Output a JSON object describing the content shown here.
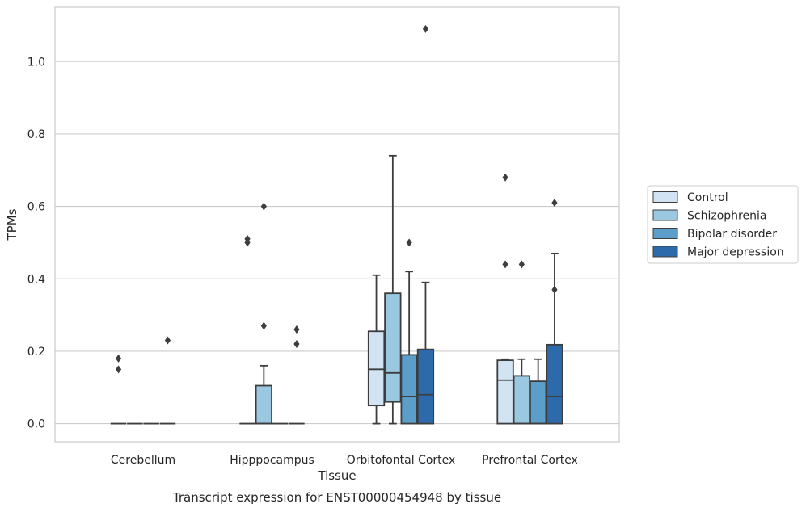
{
  "chart_data": {
    "type": "box",
    "xlabel": "Tissue",
    "ylabel": "TPMs",
    "caption": "Transcript expression for ENST00000454948 by tissue",
    "ylim": [
      -0.05,
      1.15
    ],
    "yticks": [
      "0.0",
      "0.2",
      "0.4",
      "0.6",
      "0.8",
      "1.0"
    ],
    "grid": true,
    "legend_position": "right",
    "categories": [
      "Cerebellum",
      "Hipppocampus",
      "Orbitofontal Cortex",
      "Prefrontal Cortex"
    ],
    "series": [
      {
        "name": "Control",
        "color": "#d2e3f3",
        "boxes": [
          {
            "q1": 0,
            "median": 0,
            "q3": 0,
            "whisker_low": 0,
            "whisker_high": 0,
            "outliers": [
              0.15,
              0.18
            ]
          },
          {
            "q1": 0,
            "median": 0,
            "q3": 0,
            "whisker_low": 0,
            "whisker_high": 0,
            "outliers": [
              0.5,
              0.51
            ]
          },
          {
            "q1": 0.05,
            "median": 0.15,
            "q3": 0.255,
            "whisker_low": 0,
            "whisker_high": 0.41,
            "outliers": []
          },
          {
            "q1": 0,
            "median": 0.12,
            "q3": 0.175,
            "whisker_low": 0,
            "whisker_high": 0.178,
            "outliers": [
              0.44,
              0.68
            ]
          }
        ]
      },
      {
        "name": "Schizophrenia",
        "color": "#9ac8e0",
        "boxes": [
          {
            "q1": 0,
            "median": 0,
            "q3": 0,
            "whisker_low": 0,
            "whisker_high": 0,
            "outliers": []
          },
          {
            "q1": 0,
            "median": 0,
            "q3": 0.105,
            "whisker_low": 0,
            "whisker_high": 0.16,
            "outliers": [
              0.27,
              0.6
            ]
          },
          {
            "q1": 0.06,
            "median": 0.14,
            "q3": 0.36,
            "whisker_low": 0,
            "whisker_high": 0.74,
            "outliers": []
          },
          {
            "q1": 0,
            "median": 0,
            "q3": 0.132,
            "whisker_low": 0,
            "whisker_high": 0.178,
            "outliers": [
              0.44
            ]
          }
        ]
      },
      {
        "name": "Bipolar disorder",
        "color": "#5a9ec9",
        "boxes": [
          {
            "q1": 0,
            "median": 0,
            "q3": 0,
            "whisker_low": 0,
            "whisker_high": 0,
            "outliers": []
          },
          {
            "q1": 0,
            "median": 0,
            "q3": 0,
            "whisker_low": 0,
            "whisker_high": 0,
            "outliers": []
          },
          {
            "q1": 0,
            "median": 0.075,
            "q3": 0.19,
            "whisker_low": 0,
            "whisker_high": 0.42,
            "outliers": [
              0.5
            ]
          },
          {
            "q1": 0,
            "median": 0,
            "q3": 0.117,
            "whisker_low": 0,
            "whisker_high": 0.178,
            "outliers": []
          }
        ]
      },
      {
        "name": "Major depression",
        "color": "#2d6aab",
        "boxes": [
          {
            "q1": 0,
            "median": 0,
            "q3": 0,
            "whisker_low": 0,
            "whisker_high": 0,
            "outliers": [
              0.23
            ]
          },
          {
            "q1": 0,
            "median": 0,
            "q3": 0,
            "whisker_low": 0,
            "whisker_high": 0,
            "outliers": [
              0.22,
              0.26
            ]
          },
          {
            "q1": 0,
            "median": 0.08,
            "q3": 0.205,
            "whisker_low": 0,
            "whisker_high": 0.39,
            "outliers": [
              1.09
            ]
          },
          {
            "q1": 0,
            "median": 0.075,
            "q3": 0.218,
            "whisker_low": 0,
            "whisker_high": 0.47,
            "outliers": [
              0.37,
              0.61
            ]
          }
        ]
      }
    ]
  }
}
